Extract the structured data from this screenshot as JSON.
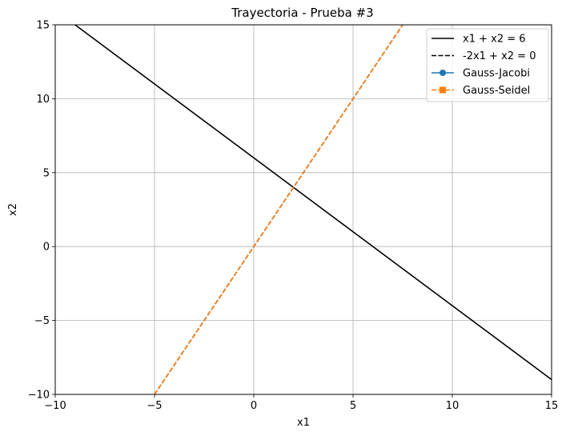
{
  "chart_data": {
    "type": "line",
    "title": "Trayectoria - Prueba #3",
    "xlabel": "x1",
    "ylabel": "x2",
    "xlim": [
      -10,
      15
    ],
    "ylim": [
      -10,
      15
    ],
    "xticks": [
      -10,
      -5,
      0,
      5,
      10,
      15
    ],
    "yticks": [
      -10,
      -5,
      0,
      5,
      10,
      15
    ],
    "xtick_labels": [
      "−10",
      "−5",
      "0",
      "5",
      "10",
      "15"
    ],
    "ytick_labels": [
      "−10",
      "−5",
      "0",
      "5",
      "10",
      "15"
    ],
    "grid": true,
    "legend_position": "top-right",
    "series": [
      {
        "name": "x1 + x2 = 6",
        "color": "#000000",
        "style": "solid",
        "marker": "none",
        "x": [
          -10,
          15
        ],
        "y": [
          16,
          -9
        ]
      },
      {
        "name": "-2x1 + x2 = 0",
        "color": "#000000",
        "style": "dashed",
        "marker": "none",
        "x": [
          -5,
          7.5
        ],
        "y": [
          -10,
          15
        ]
      },
      {
        "name": "Gauss-Jacobi",
        "color": "#1f77b4",
        "style": "solid",
        "marker": "circle",
        "x": [],
        "y": []
      },
      {
        "name": "Gauss-Seidel",
        "color": "#ff7f0e",
        "style": "dashed",
        "marker": "square",
        "x": [
          -5,
          7.5
        ],
        "y": [
          -10,
          15
        ]
      }
    ]
  }
}
